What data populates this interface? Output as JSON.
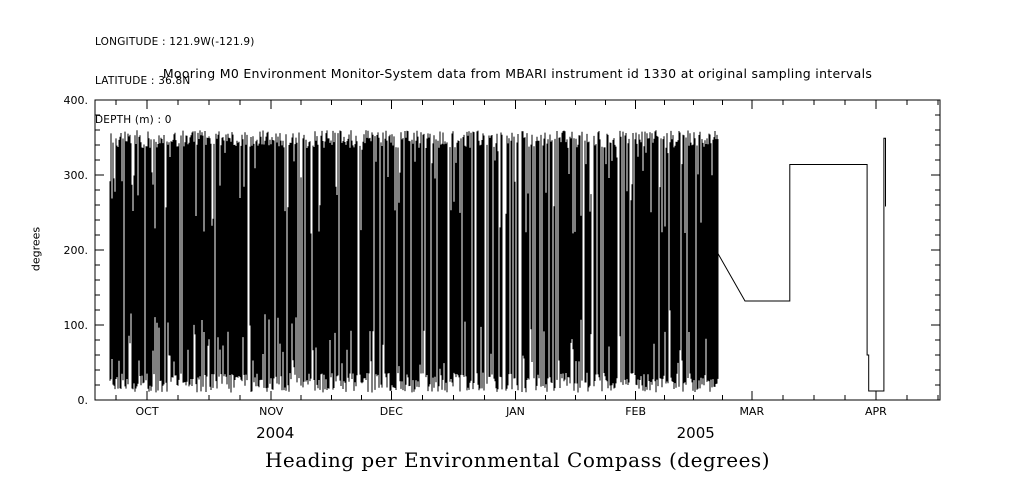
{
  "meta": {
    "longitude": "LONGITUDE : 121.9W(-121.9)",
    "latitude": "LATITUDE : 36.8N",
    "depth": "DEPTH (m) : 0"
  },
  "title": "Mooring M0 Environment Monitor-System data from MBARI instrument id 1330 at original sampling intervals",
  "chart_data": {
    "type": "line",
    "title": "Heading per Environmental Compass (degrees)",
    "xlabel": "",
    "ylabel": "degrees",
    "ylim": [
      0,
      400
    ],
    "grid": false,
    "legend": "none",
    "y_ticks": [
      {
        "value": 0,
        "label": "0."
      },
      {
        "value": 100,
        "label": "100."
      },
      {
        "value": 200,
        "label": "200."
      },
      {
        "value": 300,
        "label": "300."
      },
      {
        "value": 400,
        "label": "400."
      }
    ],
    "y_minor_step": 20,
    "x_axis": {
      "unit": "days",
      "range_days": [
        0,
        211
      ],
      "month_ticks": [
        {
          "label": "OCT",
          "day": 13
        },
        {
          "label": "NOV",
          "day": 44
        },
        {
          "label": "DEC",
          "day": 74
        },
        {
          "label": "JAN",
          "day": 105
        },
        {
          "label": "FEB",
          "day": 135
        },
        {
          "label": "MAR",
          "day": 164
        },
        {
          "label": "APR",
          "day": 195
        }
      ],
      "minor_divisions": 4,
      "year_labels": [
        {
          "label": "2004",
          "day": 45
        },
        {
          "label": "2005",
          "day": 150
        }
      ]
    },
    "series": [
      {
        "name": "heading",
        "color": "#000000",
        "noise_band": {
          "day_start": 3.8,
          "day_end": 155.6,
          "y_min": 10,
          "y_max": 360,
          "base_skip_probability": 0.055,
          "sparse_windows": [
            [
              50,
              55,
              0.22
            ],
            [
              80,
              88,
              0.15
            ],
            [
              91,
              116,
              0.3
            ],
            [
              120,
              127,
              0.2
            ],
            [
              140,
              152,
              0.15
            ]
          ]
        },
        "tail_segments": [
          [
            155.6,
            195
          ],
          [
            162.3,
            132
          ],
          [
            173.5,
            132
          ],
          [
            173.5,
            314
          ],
          [
            192.8,
            314
          ],
          [
            192.8,
            60
          ],
          [
            193.2,
            60
          ],
          [
            193.2,
            12
          ],
          [
            197.0,
            12
          ],
          [
            197.0,
            349
          ],
          [
            197.4,
            349
          ],
          [
            197.4,
            258
          ]
        ]
      }
    ]
  }
}
